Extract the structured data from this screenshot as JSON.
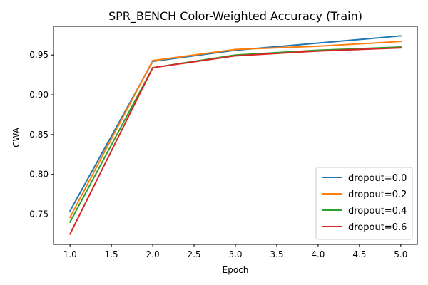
{
  "chart_data": {
    "type": "line",
    "title": "SPR_BENCH Color-Weighted Accuracy (Train)",
    "xlabel": "Epoch",
    "ylabel": "CWA",
    "x": [
      1,
      2,
      3,
      4,
      5
    ],
    "xlim": [
      0.8,
      5.2
    ],
    "ylim": [
      0.712,
      0.986
    ],
    "xticks": [
      "1.0",
      "1.5",
      "2.0",
      "2.5",
      "3.0",
      "3.5",
      "4.0",
      "4.5",
      "5.0"
    ],
    "yticks": [
      "0.75",
      "0.80",
      "0.85",
      "0.90",
      "0.95"
    ],
    "grid": false,
    "legend_position": "lower right",
    "series": [
      {
        "name": "dropout=0.0",
        "color": "#1f77b4",
        "values": [
          0.754,
          0.942,
          0.956,
          0.965,
          0.974
        ]
      },
      {
        "name": "dropout=0.2",
        "color": "#ff7f0e",
        "values": [
          0.746,
          0.943,
          0.957,
          0.961,
          0.967
        ]
      },
      {
        "name": "dropout=0.4",
        "color": "#2ca02c",
        "values": [
          0.74,
          0.934,
          0.95,
          0.956,
          0.96
        ]
      },
      {
        "name": "dropout=0.6",
        "color": "#d62728",
        "values": [
          0.725,
          0.934,
          0.949,
          0.955,
          0.959
        ]
      }
    ]
  }
}
